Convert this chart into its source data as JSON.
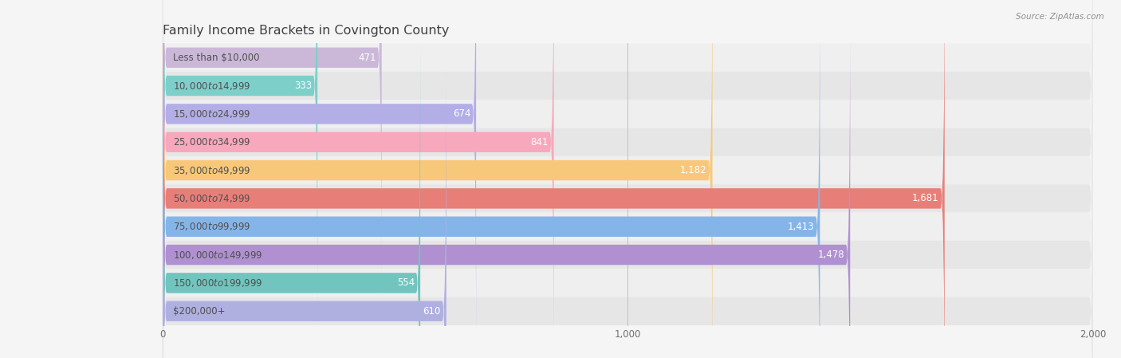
{
  "title": "Family Income Brackets in Covington County",
  "source": "Source: ZipAtlas.com",
  "categories": [
    "Less than $10,000",
    "$10,000 to $14,999",
    "$15,000 to $24,999",
    "$25,000 to $34,999",
    "$35,000 to $49,999",
    "$50,000 to $74,999",
    "$75,000 to $99,999",
    "$100,000 to $149,999",
    "$150,000 to $199,999",
    "$200,000+"
  ],
  "values": [
    471,
    333,
    674,
    841,
    1182,
    1681,
    1413,
    1478,
    554,
    610
  ],
  "bar_colors": [
    "#cbb8d9",
    "#7dcfca",
    "#b3aee6",
    "#f7a8bc",
    "#f8c87a",
    "#e87e78",
    "#85b5e8",
    "#b090d0",
    "#72c4be",
    "#b0b0e0"
  ],
  "xlim": [
    0,
    2000
  ],
  "xticks": [
    0,
    1000,
    2000
  ],
  "xtick_labels": [
    "0",
    "1,000",
    "2,000"
  ],
  "bg_color": "#f5f5f5",
  "bar_bg_color": "#e8e8e8",
  "row_bg_colors": [
    "#f0f0f0",
    "#e8e8e8"
  ],
  "title_color": "#404040",
  "label_color": "#505050",
  "value_color_inside": "#ffffff",
  "value_color_outside": "#606060",
  "title_fontsize": 11.5,
  "label_fontsize": 8.5,
  "value_fontsize": 8.5,
  "bar_height": 0.72,
  "value_threshold": 150
}
